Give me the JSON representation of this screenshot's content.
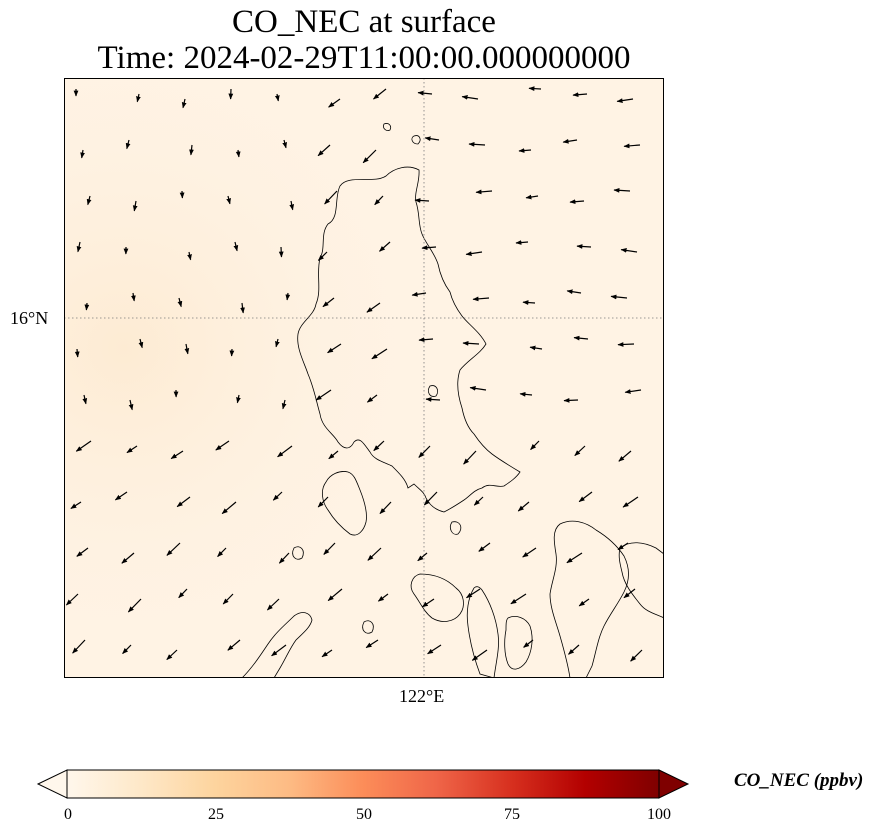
{
  "title": {
    "line1": "CO_NEC at surface",
    "line2": "Time: 2024-02-29T11:00:00.000000000"
  },
  "map": {
    "lat_labels": [
      "16°N"
    ],
    "lon_labels": [
      "122°E"
    ],
    "background_color": "#fff3e4",
    "coastline_color": "#000000",
    "gridline_style": "dotted"
  },
  "colorbar": {
    "label": "CO_NEC (ppbv)",
    "ticks": [
      "0",
      "25",
      "50",
      "75",
      "100"
    ],
    "colormap": "OrRd",
    "range": [
      0,
      100
    ],
    "extend": "both"
  }
}
